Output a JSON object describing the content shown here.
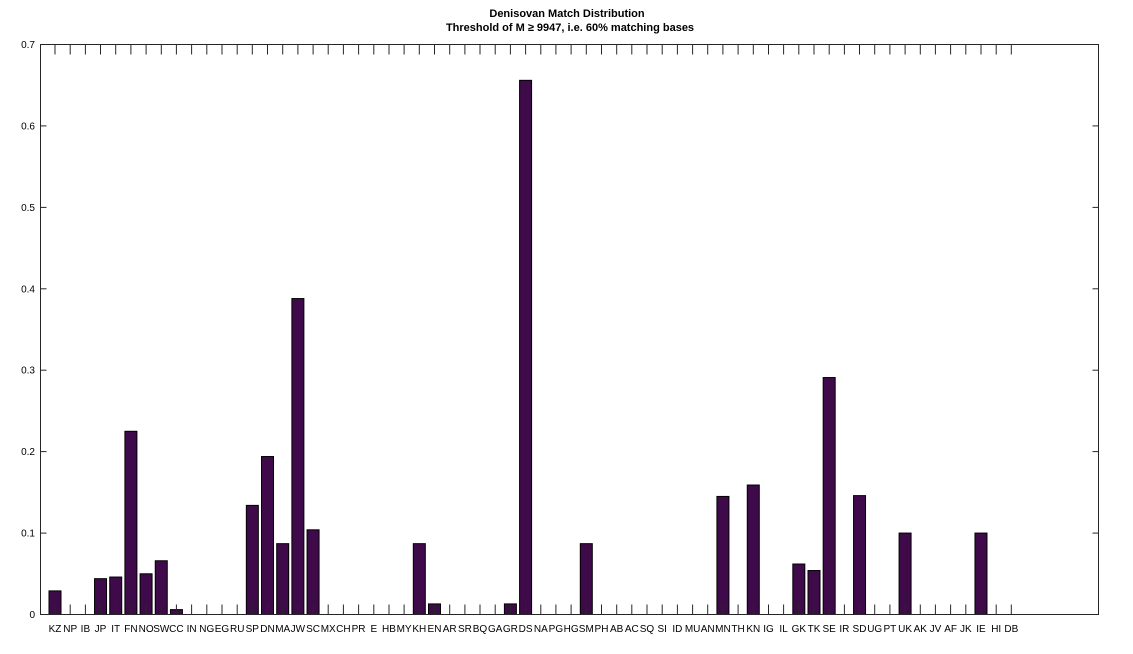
{
  "chart_data": {
    "type": "bar",
    "title": "Denisovan Match Distribution",
    "subtitle": "Threshold of M ≥ 9947, i.e. 60% matching bases",
    "xlabel": "",
    "ylabel": "",
    "ylim": [
      0,
      0.7
    ],
    "yticks": [
      "0",
      "0.1",
      "0.2",
      "0.3",
      "0.4",
      "0.5",
      "0.6",
      "0.7"
    ],
    "grid": false,
    "bar_color": "#3f0a4a",
    "categories": [
      "KZ",
      "NP",
      "IB",
      "JP",
      "IT",
      "FN",
      "NO",
      "SW",
      "CC",
      "IN",
      "NG",
      "EG",
      "RU",
      "SP",
      "DN",
      "MA",
      "JW",
      "SC",
      "MX",
      "CH",
      "PR",
      "E",
      "HB",
      "MY",
      "KH",
      "EN",
      "AR",
      "SR",
      "BQ",
      "GA",
      "GR",
      "DS",
      "NA",
      "PG",
      "HG",
      "SM",
      "PH",
      "AB",
      "AC",
      "SQ",
      "SI",
      "ID",
      "MU",
      "AN",
      "MN",
      "TH",
      "KN",
      "IG",
      "IL",
      "GK",
      "TK",
      "SE",
      "IR",
      "SD",
      "UG",
      "PT",
      "UK",
      "AK",
      "JV",
      "AF",
      "JK",
      "IE",
      "HI",
      "DB"
    ],
    "values": [
      0.029,
      0,
      0,
      0.044,
      0.046,
      0.225,
      0.05,
      0.066,
      0.006,
      0,
      0,
      0,
      0,
      0.134,
      0.194,
      0.087,
      0.388,
      0.104,
      0,
      0,
      0,
      0,
      0,
      0,
      0.087,
      0.013,
      0,
      0,
      0,
      0,
      0.013,
      0.656,
      0,
      0,
      0,
      0.087,
      0,
      0,
      0,
      0,
      0,
      0,
      0,
      0,
      0.145,
      0,
      0.159,
      0,
      0,
      0.062,
      0.054,
      0.291,
      0,
      0.146,
      0,
      0,
      0.1,
      0,
      0,
      0,
      0,
      0.1,
      0,
      0
    ]
  }
}
